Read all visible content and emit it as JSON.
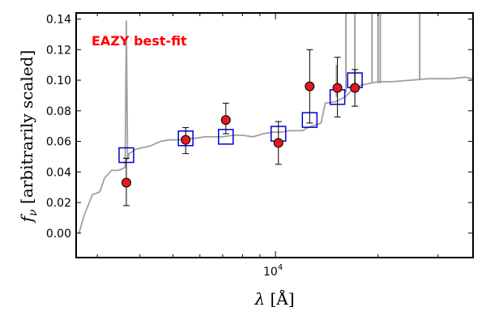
{
  "chart_data": {
    "type": "scatter",
    "annotation": "EAZY best-fit",
    "xlabel": "λ [Å]",
    "ylabel": "f_ν [arbitrarily scaled]",
    "ylabel_symbol": "f",
    "ylabel_subscript": "ν",
    "ylabel_text": " [arbitrarily scaled]",
    "xlabel_symbol": "λ",
    "xlabel_text": " [Å]",
    "xscale": "log",
    "xlim": [
      2600,
      38000
    ],
    "ylim": [
      -0.016,
      0.144
    ],
    "yticks": [
      0.0,
      0.02,
      0.04,
      0.06,
      0.08,
      0.1,
      0.12,
      0.14
    ],
    "ytick_labels": [
      "0.00",
      "0.02",
      "0.04",
      "0.06",
      "0.08",
      "0.10",
      "0.12",
      "0.14"
    ],
    "xtick_major": [
      10000
    ],
    "xtick_major_label_base": "10",
    "xtick_major_label_exp": "4",
    "xtick_minor": [
      3000,
      4000,
      5000,
      6000,
      7000,
      8000,
      9000,
      20000,
      30000
    ],
    "grid": false,
    "colors": {
      "observed_fill": "#e31a1c",
      "model_box": "#0000cc",
      "template_line": "#a0a0a0",
      "annotation": "#ff0000"
    },
    "series": [
      {
        "kind": "errorbar",
        "x": [
          3650,
          5450,
          7150,
          10200,
          12600,
          15200,
          17100
        ],
        "y": [
          0.033,
          0.061,
          0.074,
          0.059,
          0.096,
          0.095,
          0.095
        ],
        "yerr_low": [
          0.015,
          0.009,
          0.009,
          0.014,
          0.024,
          0.019,
          0.012
        ],
        "yerr_high": [
          0.016,
          0.008,
          0.011,
          0.014,
          0.024,
          0.02,
          0.012
        ]
      },
      {
        "kind": "model_points",
        "x": [
          3650,
          5450,
          7150,
          10200,
          12600,
          15200,
          17100
        ],
        "y": [
          0.051,
          0.062,
          0.063,
          0.065,
          0.074,
          0.089,
          0.1
        ]
      },
      {
        "kind": "template",
        "x": [
          2650,
          2750,
          2900,
          3050,
          3150,
          3300,
          3450,
          3550,
          3620,
          3650,
          3680,
          3720,
          3900,
          4100,
          4300,
          4600,
          4900,
          5200,
          5500,
          5800,
          6200,
          6600,
          7000,
          7500,
          8000,
          8600,
          9200,
          9800,
          10400,
          11000,
          11600,
          12000,
          12400,
          12800,
          13200,
          13600,
          14000,
          15000,
          16000,
          17000,
          18000,
          20000,
          22000,
          25000,
          28000,
          30000,
          33000,
          36000,
          38000
        ],
        "y": [
          0.0,
          0.012,
          0.025,
          0.027,
          0.036,
          0.041,
          0.041,
          0.042,
          0.043,
          0.139,
          0.048,
          0.052,
          0.055,
          0.056,
          0.057,
          0.06,
          0.061,
          0.061,
          0.062,
          0.062,
          0.063,
          0.063,
          0.063,
          0.064,
          0.064,
          0.063,
          0.065,
          0.066,
          0.066,
          0.067,
          0.067,
          0.067,
          0.069,
          0.07,
          0.071,
          0.072,
          0.085,
          0.086,
          0.089,
          0.095,
          0.097,
          0.099,
          0.099,
          0.1,
          0.101,
          0.101,
          0.101,
          0.102,
          0.101
        ]
      },
      {
        "kind": "template_emission_spikes",
        "x": [
          15100,
          16100,
          17100,
          19200,
          20000,
          20300,
          26500
        ],
        "y": [
          0.11,
          0.144,
          0.144,
          0.144,
          0.144,
          0.144,
          0.144
        ],
        "base": [
          0.089,
          0.092,
          0.096,
          0.098,
          0.098,
          0.098,
          0.1
        ]
      }
    ]
  }
}
